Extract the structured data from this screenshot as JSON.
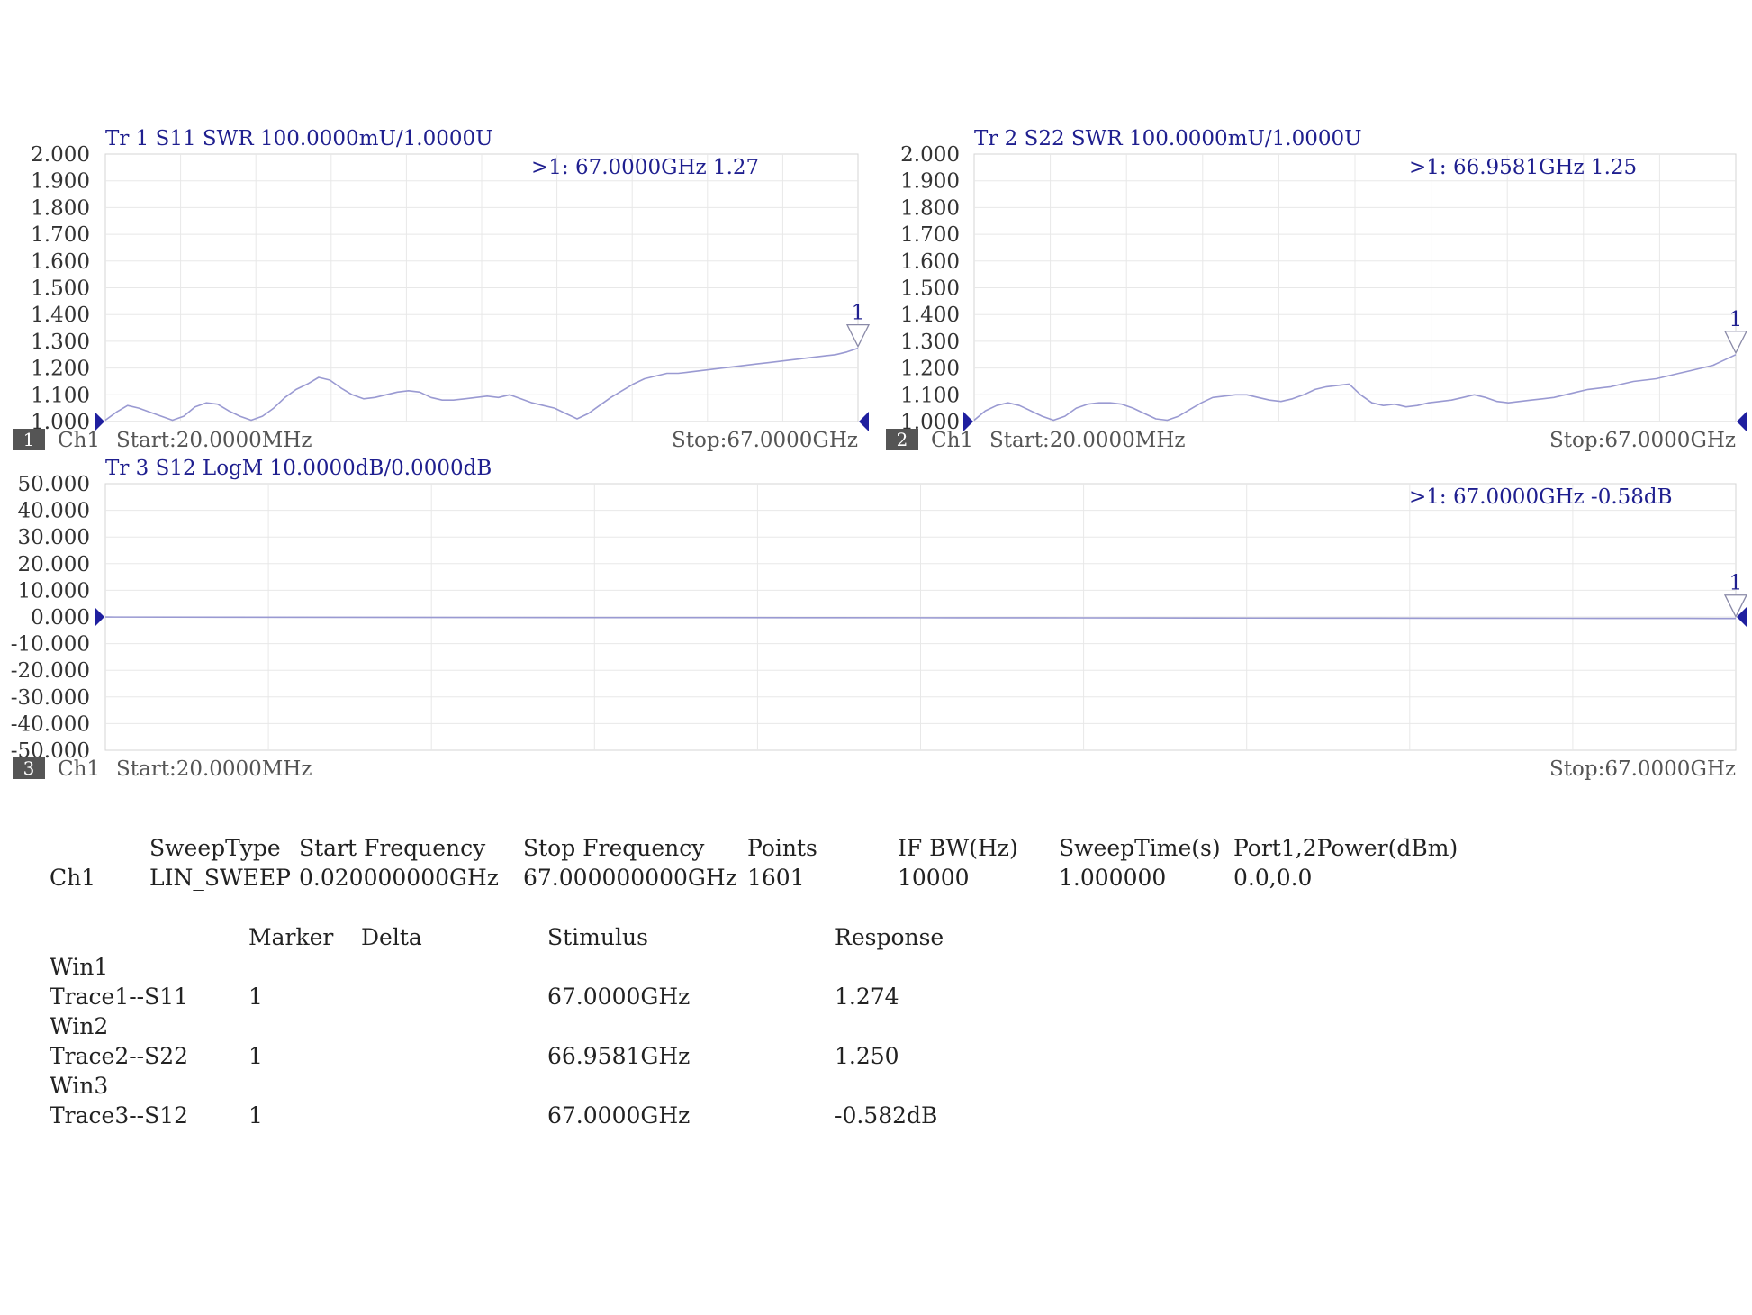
{
  "colors": {
    "trace": "#9a9ad2",
    "header_text": "#1f1f8f",
    "grid": "#e8e8e8",
    "marker": "#1f1f9f",
    "window_badge": "#555555"
  },
  "chart_data": [
    {
      "type": "line",
      "window": "1",
      "channel": "Ch1",
      "header": "Tr 1  S11 SWR 100.0000mU/1.0000U",
      "marker_readout": ">1:   67.0000GHz 1.27",
      "marker_label": "1",
      "start_label": "Start:20.0000MHz",
      "stop_label": "Stop:67.0000GHz",
      "xlim": [
        0.02,
        67.0
      ],
      "ylim": [
        1.0,
        2.0
      ],
      "yticks": [
        "2.000",
        "1.900",
        "1.800",
        "1.700",
        "1.600",
        "1.500",
        "1.400",
        "1.300",
        "1.200",
        "1.100",
        "1.000"
      ],
      "grid": true,
      "series": [
        {
          "x": [
            0.02,
            1,
            2,
            3,
            4,
            5,
            6,
            7,
            8,
            9,
            10,
            11,
            12,
            13,
            14,
            15,
            16,
            17,
            18,
            19,
            20,
            21,
            22,
            23,
            24,
            25,
            26,
            27,
            28,
            29,
            30,
            31,
            32,
            33,
            34,
            35,
            36,
            37,
            38,
            39,
            40,
            41,
            42,
            43,
            44,
            45,
            46,
            47,
            48,
            49,
            50,
            51,
            52,
            53,
            54,
            55,
            56,
            57,
            58,
            59,
            60,
            61,
            62,
            63,
            64,
            65,
            66,
            67
          ],
          "y": [
            1.005,
            1.035,
            1.06,
            1.05,
            1.035,
            1.02,
            1.005,
            1.02,
            1.055,
            1.07,
            1.065,
            1.04,
            1.02,
            1.005,
            1.02,
            1.05,
            1.09,
            1.12,
            1.14,
            1.165,
            1.155,
            1.125,
            1.1,
            1.085,
            1.09,
            1.1,
            1.11,
            1.115,
            1.11,
            1.09,
            1.08,
            1.08,
            1.085,
            1.09,
            1.095,
            1.09,
            1.1,
            1.085,
            1.07,
            1.06,
            1.05,
            1.03,
            1.01,
            1.03,
            1.06,
            1.09,
            1.115,
            1.14,
            1.16,
            1.17,
            1.18,
            1.18,
            1.185,
            1.19,
            1.195,
            1.2,
            1.205,
            1.21,
            1.215,
            1.22,
            1.225,
            1.23,
            1.235,
            1.24,
            1.245,
            1.25,
            1.26,
            1.274
          ]
        }
      ]
    },
    {
      "type": "line",
      "window": "2",
      "channel": "Ch1",
      "header": "Tr 2  S22 SWR 100.0000mU/1.0000U",
      "marker_readout": ">1:   66.9581GHz 1.25",
      "marker_label": "1",
      "start_label": "Start:20.0000MHz",
      "stop_label": "Stop:67.0000GHz",
      "xlim": [
        0.02,
        67.0
      ],
      "ylim": [
        1.0,
        2.0
      ],
      "yticks": [
        "2.000",
        "1.900",
        "1.800",
        "1.700",
        "1.600",
        "1.500",
        "1.400",
        "1.300",
        "1.200",
        "1.100",
        "1.000"
      ],
      "grid": true,
      "series": [
        {
          "x": [
            0.02,
            1,
            2,
            3,
            4,
            5,
            6,
            7,
            8,
            9,
            10,
            11,
            12,
            13,
            14,
            15,
            16,
            17,
            18,
            19,
            20,
            21,
            22,
            23,
            24,
            25,
            26,
            27,
            28,
            29,
            30,
            31,
            32,
            33,
            34,
            35,
            36,
            37,
            38,
            39,
            40,
            41,
            42,
            43,
            44,
            45,
            46,
            47,
            48,
            49,
            50,
            51,
            52,
            53,
            54,
            55,
            56,
            57,
            58,
            59,
            60,
            61,
            62,
            63,
            64,
            65,
            66,
            67
          ],
          "y": [
            1.005,
            1.04,
            1.06,
            1.07,
            1.06,
            1.04,
            1.02,
            1.005,
            1.02,
            1.05,
            1.065,
            1.07,
            1.07,
            1.065,
            1.05,
            1.03,
            1.01,
            1.005,
            1.02,
            1.045,
            1.07,
            1.09,
            1.095,
            1.1,
            1.1,
            1.09,
            1.08,
            1.075,
            1.085,
            1.1,
            1.12,
            1.13,
            1.135,
            1.14,
            1.1,
            1.07,
            1.06,
            1.065,
            1.055,
            1.06,
            1.07,
            1.075,
            1.08,
            1.09,
            1.1,
            1.09,
            1.075,
            1.07,
            1.075,
            1.08,
            1.085,
            1.09,
            1.1,
            1.11,
            1.12,
            1.125,
            1.13,
            1.14,
            1.15,
            1.155,
            1.16,
            1.17,
            1.18,
            1.19,
            1.2,
            1.21,
            1.23,
            1.25
          ]
        }
      ]
    },
    {
      "type": "line",
      "window": "3",
      "channel": "Ch1",
      "header": "Tr 3  S12 LogM 10.0000dB/0.0000dB",
      "marker_readout": ">1:   67.0000GHz -0.58dB",
      "marker_label": "1",
      "start_label": "Start:20.0000MHz",
      "stop_label": "Stop:67.0000GHz",
      "xlim": [
        0.02,
        67.0
      ],
      "ylim": [
        -50.0,
        50.0
      ],
      "yticks": [
        "50.000",
        "40.000",
        "30.000",
        "20.000",
        "10.000",
        "0.000",
        "-10.000",
        "-20.000",
        "-30.000",
        "-40.000",
        "-50.000"
      ],
      "grid": true,
      "series": [
        {
          "x": [
            0.02,
            5,
            10,
            15,
            20,
            25,
            30,
            35,
            40,
            45,
            50,
            55,
            60,
            65,
            67
          ],
          "y": [
            -0.05,
            -0.1,
            -0.15,
            -0.2,
            -0.22,
            -0.25,
            -0.28,
            -0.3,
            -0.35,
            -0.4,
            -0.45,
            -0.48,
            -0.5,
            -0.55,
            -0.58
          ]
        }
      ]
    }
  ],
  "settings_table": {
    "headers": [
      "SweepType",
      "Start Frequency",
      "Stop Frequency",
      "Points",
      "IF BW(Hz)",
      "SweepTime(s)",
      "Port1,2Power(dBm)"
    ],
    "row_label": "Ch1",
    "row": [
      "LIN_SWEEP",
      "0.020000000GHz",
      "67.000000000GHz",
      "1601",
      "10000",
      "1.000000",
      "0.0,0.0"
    ]
  },
  "marker_table": {
    "headers": [
      "Marker",
      "Delta",
      "Stimulus",
      "Response"
    ],
    "groups": [
      {
        "win": "Win1",
        "trace": "Trace1--S11",
        "marker": "1",
        "delta": "",
        "stimulus": "67.0000GHz",
        "response": "1.274"
      },
      {
        "win": "Win2",
        "trace": "Trace2--S22",
        "marker": "1",
        "delta": "",
        "stimulus": "66.9581GHz",
        "response": "1.250"
      },
      {
        "win": "Win3",
        "trace": "Trace3--S12",
        "marker": "1",
        "delta": "",
        "stimulus": "67.0000GHz",
        "response": "-0.582dB"
      }
    ]
  }
}
